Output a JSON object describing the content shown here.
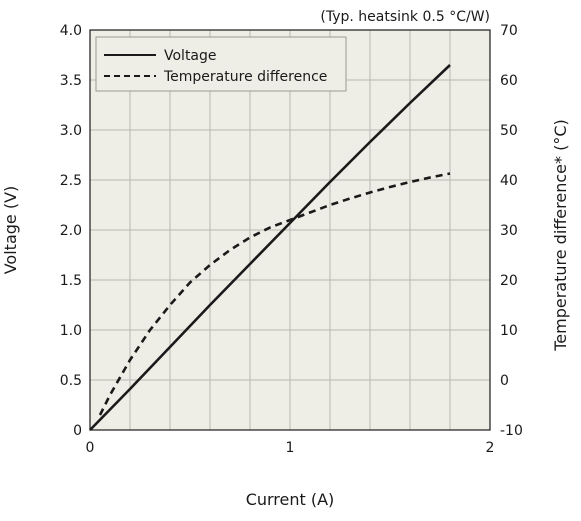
{
  "chart_data": {
    "type": "line",
    "title": "",
    "annotation": "(Typ. heatsink 0.5 °C/W)",
    "xlabel": "Current (A)",
    "ylabel_left": "Voltage (V)",
    "ylabel_right": "Temperature difference* (°C)",
    "xlim": [
      0,
      2
    ],
    "ylim_left": [
      0,
      4.0
    ],
    "ylim_right": [
      -10,
      70
    ],
    "x_ticks": [
      "0",
      "1",
      "2"
    ],
    "y_left_ticks": [
      "0",
      "0.5",
      "1.0",
      "1.5",
      "2.0",
      "2.5",
      "3.0",
      "3.5",
      "4.0"
    ],
    "y_right_ticks": [
      "-10",
      "0",
      "10",
      "20",
      "30",
      "40",
      "50",
      "60",
      "70"
    ],
    "grid": true,
    "legend_position": "top-left",
    "colors": {
      "plot_background": "#efeee6",
      "grid": "#b8b8b0",
      "line": "#1a1a1a"
    },
    "series": [
      {
        "name": "Voltage",
        "axis": "left",
        "style": "solid",
        "x": [
          0,
          0.2,
          0.4,
          0.6,
          0.8,
          1.0,
          1.2,
          1.4,
          1.6,
          1.8
        ],
        "y": [
          0,
          0.41,
          0.83,
          1.25,
          1.66,
          2.07,
          2.48,
          2.88,
          3.27,
          3.65
        ]
      },
      {
        "name": "Temperature difference",
        "axis": "right",
        "style": "dashed",
        "x": [
          0.05,
          0.1,
          0.2,
          0.3,
          0.4,
          0.5,
          0.6,
          0.7,
          0.8,
          0.9,
          1.0,
          1.1,
          1.2,
          1.3,
          1.4,
          1.5,
          1.6,
          1.7,
          1.8
        ],
        "y": [
          -7,
          -3,
          4,
          10,
          15,
          19.5,
          23,
          26,
          28.5,
          30.5,
          32,
          33.5,
          35,
          36.3,
          37.5,
          38.6,
          39.6,
          40.5,
          41.3
        ]
      }
    ]
  }
}
